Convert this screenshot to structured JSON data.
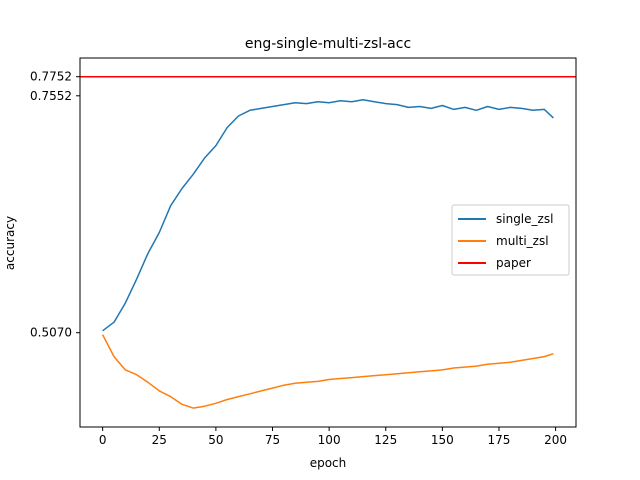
{
  "chart_data": {
    "type": "line",
    "title": "eng-single-multi-zsl-acc",
    "xlabel": "epoch",
    "ylabel": "accuracy",
    "xlim": [
      -10,
      209
    ],
    "ylim": [
      0.4082,
      0.7948
    ],
    "xticks": [
      0,
      25,
      50,
      75,
      100,
      125,
      150,
      175,
      200
    ],
    "xtick_labels": [
      "0",
      "25",
      "50",
      "75",
      "100",
      "125",
      "150",
      "175",
      "200"
    ],
    "yticks": [
      0.507,
      0.7552,
      0.7752
    ],
    "ytick_labels": [
      "0.5070",
      "0.7552",
      "0.7752"
    ],
    "grid": false,
    "legend_position": "center-right",
    "series": [
      {
        "name": "single_zsl",
        "color": "#1f77b4",
        "x": [
          0,
          5,
          10,
          15,
          20,
          25,
          30,
          35,
          40,
          45,
          50,
          55,
          60,
          65,
          70,
          75,
          80,
          85,
          90,
          95,
          100,
          105,
          110,
          115,
          120,
          125,
          130,
          135,
          140,
          145,
          150,
          155,
          160,
          165,
          170,
          175,
          180,
          185,
          190,
          195,
          199
        ],
        "y": [
          0.509,
          0.518,
          0.538,
          0.563,
          0.59,
          0.612,
          0.64,
          0.658,
          0.673,
          0.69,
          0.703,
          0.722,
          0.734,
          0.74,
          0.742,
          0.744,
          0.746,
          0.748,
          0.747,
          0.749,
          0.748,
          0.75,
          0.749,
          0.751,
          0.749,
          0.747,
          0.746,
          0.743,
          0.744,
          0.742,
          0.745,
          0.741,
          0.743,
          0.74,
          0.744,
          0.741,
          0.743,
          0.742,
          0.74,
          0.741,
          0.732
        ]
      },
      {
        "name": "multi_zsl",
        "color": "#ff7f0e",
        "x": [
          0,
          5,
          10,
          15,
          20,
          25,
          30,
          35,
          40,
          45,
          50,
          55,
          60,
          65,
          70,
          75,
          80,
          85,
          90,
          95,
          100,
          105,
          110,
          115,
          120,
          125,
          130,
          135,
          140,
          145,
          150,
          155,
          160,
          165,
          170,
          175,
          180,
          185,
          190,
          195,
          199
        ],
        "y": [
          0.505,
          0.482,
          0.468,
          0.463,
          0.455,
          0.446,
          0.44,
          0.432,
          0.428,
          0.43,
          0.433,
          0.437,
          0.44,
          0.443,
          0.446,
          0.449,
          0.452,
          0.454,
          0.455,
          0.456,
          0.458,
          0.459,
          0.46,
          0.461,
          0.462,
          0.463,
          0.464,
          0.465,
          0.466,
          0.467,
          0.468,
          0.47,
          0.471,
          0.472,
          0.474,
          0.475,
          0.476,
          0.478,
          0.48,
          0.482,
          0.485
        ]
      },
      {
        "name": "paper",
        "color": "#ff0000",
        "hline": 0.7752
      }
    ]
  }
}
